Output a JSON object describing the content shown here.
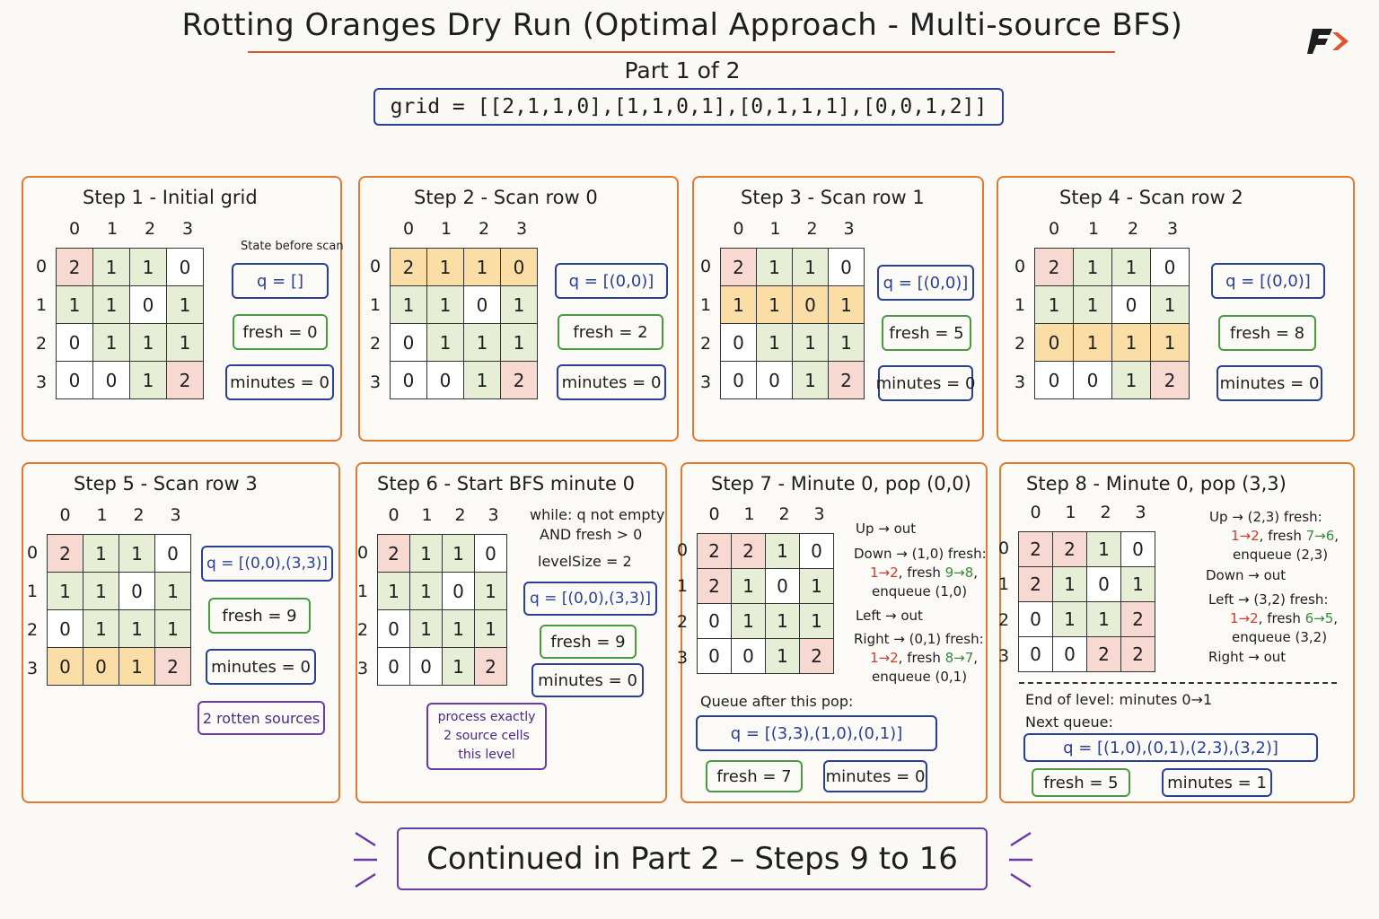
{
  "title": "Rotting Oranges Dry Run (Optimal Approach - Multi-source BFS)",
  "part": "Part 1 of 2",
  "grid_def": "grid = [[2,1,1,0],[1,1,0,1],[0,1,1,1],[0,0,1,2]]",
  "col_headers": [
    "0",
    "1",
    "2",
    "3"
  ],
  "row_headers": [
    "0",
    "1",
    "2",
    "3"
  ],
  "steps": [
    {
      "title": "Step 1 - Initial grid",
      "note": "State before scan",
      "grid": [
        [
          "2",
          "1",
          "1",
          "0"
        ],
        [
          "1",
          "1",
          "0",
          "1"
        ],
        [
          "0",
          "1",
          "1",
          "1"
        ],
        [
          "0",
          "0",
          "1",
          "2"
        ]
      ],
      "q": "q = []",
      "fresh": "fresh = 0",
      "minutes": "minutes = 0"
    },
    {
      "title": "Step 2 - Scan row 0",
      "grid": [
        [
          "2",
          "1",
          "1",
          "0"
        ],
        [
          "1",
          "1",
          "0",
          "1"
        ],
        [
          "0",
          "1",
          "1",
          "1"
        ],
        [
          "0",
          "0",
          "1",
          "2"
        ]
      ],
      "q": "q = [(0,0)]",
      "fresh": "fresh = 2",
      "minutes": "minutes = 0"
    },
    {
      "title": "Step 3 - Scan row 1",
      "grid": [
        [
          "2",
          "1",
          "1",
          "0"
        ],
        [
          "1",
          "1",
          "0",
          "1"
        ],
        [
          "0",
          "1",
          "1",
          "1"
        ],
        [
          "0",
          "0",
          "1",
          "2"
        ]
      ],
      "q": "q = [(0,0)]",
      "fresh": "fresh = 5",
      "minutes": "minutes = 0"
    },
    {
      "title": "Step 4 - Scan row 2",
      "grid": [
        [
          "2",
          "1",
          "1",
          "0"
        ],
        [
          "1",
          "1",
          "0",
          "1"
        ],
        [
          "0",
          "1",
          "1",
          "1"
        ],
        [
          "0",
          "0",
          "1",
          "2"
        ]
      ],
      "q": "q = [(0,0)]",
      "fresh": "fresh = 8",
      "minutes": "minutes = 0"
    },
    {
      "title": "Step 5 - Scan row 3",
      "grid": [
        [
          "2",
          "1",
          "1",
          "0"
        ],
        [
          "1",
          "1",
          "0",
          "1"
        ],
        [
          "0",
          "1",
          "1",
          "1"
        ],
        [
          "0",
          "0",
          "1",
          "2"
        ]
      ],
      "q": "q = [(0,0),(3,3)]",
      "fresh": "fresh = 9",
      "minutes": "minutes = 0",
      "extra": "2 rotten sources"
    },
    {
      "title": "Step 6 - Start BFS minute 0",
      "grid": [
        [
          "2",
          "1",
          "1",
          "0"
        ],
        [
          "1",
          "1",
          "0",
          "1"
        ],
        [
          "0",
          "1",
          "1",
          "1"
        ],
        [
          "0",
          "0",
          "1",
          "2"
        ]
      ],
      "cond": [
        "while: q not empty",
        "AND fresh > 0",
        "levelSize = 2"
      ],
      "q": "q = [(0,0),(3,3)]",
      "fresh": "fresh = 9",
      "minutes": "minutes = 0",
      "extra": [
        "process exactly",
        "2 source cells",
        "this level"
      ]
    },
    {
      "title": "Step 7 - Minute 0, pop (0,0)",
      "grid": [
        [
          "2",
          "2",
          "1",
          "0"
        ],
        [
          "2",
          "1",
          "0",
          "1"
        ],
        [
          "0",
          "1",
          "1",
          "1"
        ],
        [
          "0",
          "0",
          "1",
          "2"
        ]
      ],
      "up": "Up → out",
      "down": [
        "Down → (1,0) fresh:",
        "1→2, fresh 9→8,",
        "enqueue (1,0)"
      ],
      "left": "Left → out",
      "right": [
        "Right → (0,1) fresh:",
        "1→2, fresh 8→7,",
        "enqueue (0,1)"
      ],
      "qlabel": "Queue after this pop:",
      "q": "q = [(3,3),(1,0),(0,1)]",
      "fresh": "fresh = 7",
      "minutes": "minutes = 0"
    },
    {
      "title": "Step 8 - Minute 0, pop (3,3)",
      "grid": [
        [
          "2",
          "2",
          "1",
          "0"
        ],
        [
          "2",
          "1",
          "0",
          "1"
        ],
        [
          "0",
          "1",
          "1",
          "2"
        ],
        [
          "0",
          "0",
          "2",
          "2"
        ]
      ],
      "up": [
        "Up → (2,3) fresh:",
        "1→2, fresh 7→6,",
        "enqueue (2,3)"
      ],
      "down": "Down → out",
      "left": [
        "Left → (3,2) fresh:",
        "1→2, fresh 6→5,",
        "enqueue (3,2)"
      ],
      "right": "Right → out",
      "end": "End of level: minutes 0→1",
      "qlabel": "Next queue:",
      "q": "q = [(1,0),(0,1),(2,3),(3,2)]",
      "fresh": "fresh = 5",
      "minutes": "minutes = 1"
    }
  ],
  "continued": "Continued in Part 2 – Steps 9 to 16",
  "colors": {
    "rotten": "#f8d9d2",
    "fresh": "#e6eed6",
    "highlight": "#fbdda6",
    "panel_border": "#e27a2e",
    "queue_border": "#2a3f96",
    "fresh_border": "#4a9a43",
    "accent": "#6a3aa5"
  },
  "logo": "brand-logo-icon"
}
